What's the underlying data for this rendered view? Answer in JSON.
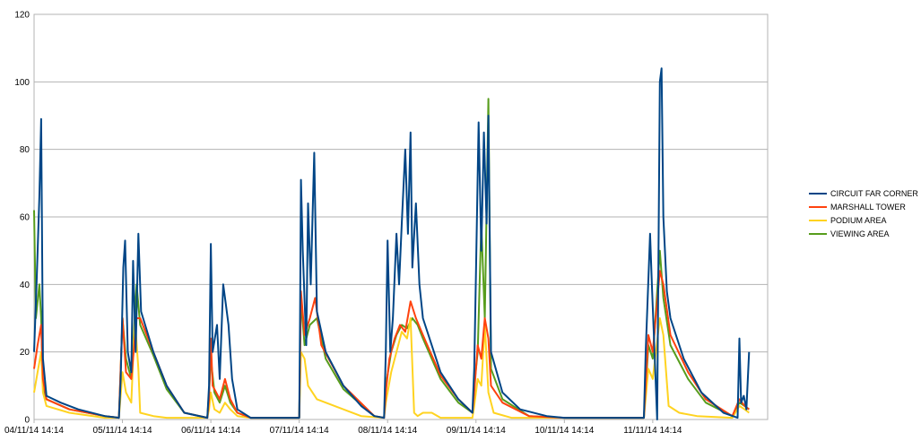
{
  "chart_data": {
    "type": "line",
    "title": "",
    "xlabel": "",
    "ylabel": "",
    "ylim": [
      0,
      120
    ],
    "yticks": [
      0,
      20,
      40,
      60,
      80,
      100,
      120
    ],
    "xlim": [
      0,
      8.3
    ],
    "x_tick_labels": [
      "04/11/14 14:14",
      "05/11/14 14:14",
      "06/11/14 14:14",
      "07/11/14 14:14",
      "08/11/14 14:14",
      "09/11/14 14:14",
      "10/11/14 14:14",
      "11/11/14 14:14"
    ],
    "x_tick_positions": [
      0,
      1,
      2,
      3,
      4,
      5,
      6,
      7
    ],
    "grid": true,
    "legend_position": "right",
    "series": [
      {
        "name": "CIRCUIT FAR CORNER",
        "color": "#004586",
        "points": [
          [
            0.0,
            20
          ],
          [
            0.03,
            42
          ],
          [
            0.06,
            66
          ],
          [
            0.08,
            89
          ],
          [
            0.1,
            18
          ],
          [
            0.14,
            7
          ],
          [
            0.3,
            5
          ],
          [
            0.5,
            3
          ],
          [
            0.8,
            1
          ],
          [
            0.96,
            0.5
          ],
          [
            0.98,
            12
          ],
          [
            1.01,
            45
          ],
          [
            1.03,
            53
          ],
          [
            1.06,
            20
          ],
          [
            1.1,
            14
          ],
          [
            1.12,
            47
          ],
          [
            1.15,
            20
          ],
          [
            1.18,
            55
          ],
          [
            1.21,
            32
          ],
          [
            1.35,
            20
          ],
          [
            1.5,
            10
          ],
          [
            1.7,
            2
          ],
          [
            1.96,
            0.5
          ],
          [
            1.98,
            10
          ],
          [
            2.0,
            52
          ],
          [
            2.02,
            20
          ],
          [
            2.07,
            28
          ],
          [
            2.1,
            12
          ],
          [
            2.14,
            40
          ],
          [
            2.17,
            34
          ],
          [
            2.2,
            28
          ],
          [
            2.24,
            12
          ],
          [
            2.3,
            3
          ],
          [
            2.45,
            0.5
          ],
          [
            3.0,
            0.5
          ],
          [
            3.01,
            30
          ],
          [
            3.02,
            71
          ],
          [
            3.04,
            50
          ],
          [
            3.08,
            22
          ],
          [
            3.1,
            64
          ],
          [
            3.13,
            40
          ],
          [
            3.17,
            79
          ],
          [
            3.2,
            32
          ],
          [
            3.3,
            20
          ],
          [
            3.5,
            10
          ],
          [
            3.7,
            4
          ],
          [
            3.85,
            1
          ],
          [
            3.96,
            0.5
          ],
          [
            3.98,
            20
          ],
          [
            4.0,
            53
          ],
          [
            4.03,
            20
          ],
          [
            4.06,
            30
          ],
          [
            4.1,
            55
          ],
          [
            4.13,
            40
          ],
          [
            4.16,
            58
          ],
          [
            4.2,
            80
          ],
          [
            4.23,
            55
          ],
          [
            4.26,
            85
          ],
          [
            4.28,
            45
          ],
          [
            4.32,
            64
          ],
          [
            4.36,
            40
          ],
          [
            4.4,
            30
          ],
          [
            4.6,
            14
          ],
          [
            4.8,
            6
          ],
          [
            4.96,
            2
          ],
          [
            4.98,
            15
          ],
          [
            5.0,
            44
          ],
          [
            5.03,
            88
          ],
          [
            5.06,
            50
          ],
          [
            5.09,
            85
          ],
          [
            5.12,
            58
          ],
          [
            5.14,
            90
          ],
          [
            5.17,
            20
          ],
          [
            5.3,
            8
          ],
          [
            5.5,
            3
          ],
          [
            5.8,
            1
          ],
          [
            6.0,
            0.5
          ],
          [
            6.9,
            0.5
          ],
          [
            6.92,
            20
          ],
          [
            6.97,
            55
          ],
          [
            6.99,
            40
          ],
          [
            7.05,
            0
          ],
          [
            7.08,
            100
          ],
          [
            7.1,
            104
          ],
          [
            7.12,
            60
          ],
          [
            7.16,
            38
          ],
          [
            7.2,
            30
          ],
          [
            7.35,
            18
          ],
          [
            7.55,
            8
          ],
          [
            7.8,
            2
          ],
          [
            7.96,
            0.5
          ],
          [
            7.98,
            24
          ],
          [
            8.0,
            5
          ],
          [
            8.03,
            7
          ],
          [
            8.06,
            3
          ],
          [
            8.09,
            20
          ]
        ]
      },
      {
        "name": "MARSHALL TOWER",
        "color": "#ff420e",
        "points": [
          [
            0.0,
            15
          ],
          [
            0.04,
            22
          ],
          [
            0.08,
            28
          ],
          [
            0.1,
            12
          ],
          [
            0.14,
            6
          ],
          [
            0.4,
            3
          ],
          [
            0.8,
            1
          ],
          [
            0.96,
            0.5
          ],
          [
            1.0,
            30
          ],
          [
            1.04,
            14
          ],
          [
            1.1,
            12
          ],
          [
            1.16,
            30
          ],
          [
            1.2,
            30
          ],
          [
            1.35,
            20
          ],
          [
            1.5,
            10
          ],
          [
            1.7,
            2
          ],
          [
            1.96,
            0.5
          ],
          [
            1.98,
            6
          ],
          [
            2.0,
            24
          ],
          [
            2.02,
            10
          ],
          [
            2.1,
            6
          ],
          [
            2.16,
            12
          ],
          [
            2.22,
            6
          ],
          [
            2.3,
            2
          ],
          [
            2.45,
            0.5
          ],
          [
            3.0,
            0.5
          ],
          [
            3.02,
            38
          ],
          [
            3.06,
            25
          ],
          [
            3.12,
            30
          ],
          [
            3.18,
            36
          ],
          [
            3.25,
            22
          ],
          [
            3.5,
            10
          ],
          [
            3.85,
            1
          ],
          [
            3.96,
            0.5
          ],
          [
            3.98,
            8
          ],
          [
            4.02,
            18
          ],
          [
            4.08,
            24
          ],
          [
            4.14,
            28
          ],
          [
            4.2,
            26
          ],
          [
            4.26,
            35
          ],
          [
            4.32,
            30
          ],
          [
            4.4,
            25
          ],
          [
            4.6,
            13
          ],
          [
            4.8,
            6
          ],
          [
            4.96,
            2
          ],
          [
            4.98,
            8
          ],
          [
            5.02,
            22
          ],
          [
            5.06,
            18
          ],
          [
            5.1,
            30
          ],
          [
            5.14,
            24
          ],
          [
            5.17,
            10
          ],
          [
            5.3,
            5
          ],
          [
            5.6,
            1
          ],
          [
            6.0,
            0.5
          ],
          [
            6.9,
            0.5
          ],
          [
            6.95,
            25
          ],
          [
            7.0,
            20
          ],
          [
            7.08,
            44
          ],
          [
            7.12,
            40
          ],
          [
            7.2,
            25
          ],
          [
            7.4,
            14
          ],
          [
            7.6,
            6
          ],
          [
            7.9,
            1
          ],
          [
            7.98,
            6
          ],
          [
            8.04,
            4
          ],
          [
            8.09,
            3
          ]
        ]
      },
      {
        "name": "PODIUM AREA",
        "color": "#ffd320",
        "points": [
          [
            0.0,
            8
          ],
          [
            0.04,
            14
          ],
          [
            0.08,
            20
          ],
          [
            0.1,
            8
          ],
          [
            0.14,
            4
          ],
          [
            0.4,
            2
          ],
          [
            0.8,
            0.5
          ],
          [
            0.96,
            0.5
          ],
          [
            1.0,
            14
          ],
          [
            1.04,
            8
          ],
          [
            1.1,
            5
          ],
          [
            1.14,
            30
          ],
          [
            1.18,
            15
          ],
          [
            1.2,
            2
          ],
          [
            1.35,
            1
          ],
          [
            1.5,
            0.5
          ],
          [
            1.96,
            0.5
          ],
          [
            1.98,
            3
          ],
          [
            2.0,
            8
          ],
          [
            2.04,
            3
          ],
          [
            2.1,
            2
          ],
          [
            2.16,
            5
          ],
          [
            2.22,
            3
          ],
          [
            2.3,
            1
          ],
          [
            2.45,
            0.5
          ],
          [
            3.0,
            0.5
          ],
          [
            3.02,
            20
          ],
          [
            3.06,
            18
          ],
          [
            3.1,
            10
          ],
          [
            3.2,
            6
          ],
          [
            3.4,
            4
          ],
          [
            3.7,
            1
          ],
          [
            3.96,
            0.5
          ],
          [
            3.98,
            5
          ],
          [
            4.04,
            14
          ],
          [
            4.1,
            20
          ],
          [
            4.16,
            26
          ],
          [
            4.22,
            24
          ],
          [
            4.26,
            30
          ],
          [
            4.3,
            2
          ],
          [
            4.34,
            1
          ],
          [
            4.4,
            2
          ],
          [
            4.5,
            2
          ],
          [
            4.6,
            0.5
          ],
          [
            4.96,
            0.5
          ],
          [
            4.98,
            4
          ],
          [
            5.02,
            12
          ],
          [
            5.06,
            10
          ],
          [
            5.1,
            28
          ],
          [
            5.14,
            8
          ],
          [
            5.2,
            2
          ],
          [
            5.4,
            0.5
          ],
          [
            6.0,
            0.5
          ],
          [
            6.9,
            0.5
          ],
          [
            6.95,
            15
          ],
          [
            7.0,
            12
          ],
          [
            7.08,
            30
          ],
          [
            7.12,
            25
          ],
          [
            7.18,
            4
          ],
          [
            7.3,
            2
          ],
          [
            7.5,
            1
          ],
          [
            7.9,
            0.5
          ],
          [
            7.98,
            4
          ],
          [
            8.04,
            3
          ],
          [
            8.09,
            2
          ]
        ]
      },
      {
        "name": "VIEWING AREA",
        "color": "#579d1c",
        "points": [
          [
            0.0,
            62
          ],
          [
            0.02,
            30
          ],
          [
            0.06,
            40
          ],
          [
            0.08,
            30
          ],
          [
            0.1,
            10
          ],
          [
            0.14,
            6
          ],
          [
            0.4,
            3
          ],
          [
            0.8,
            1
          ],
          [
            0.96,
            0.5
          ],
          [
            1.0,
            30
          ],
          [
            1.04,
            18
          ],
          [
            1.1,
            12
          ],
          [
            1.16,
            40
          ],
          [
            1.2,
            28
          ],
          [
            1.35,
            19
          ],
          [
            1.5,
            9
          ],
          [
            1.7,
            2
          ],
          [
            1.96,
            0.5
          ],
          [
            1.98,
            8
          ],
          [
            2.0,
            18
          ],
          [
            2.04,
            8
          ],
          [
            2.1,
            5
          ],
          [
            2.16,
            10
          ],
          [
            2.22,
            5
          ],
          [
            2.3,
            2
          ],
          [
            2.45,
            0.5
          ],
          [
            3.0,
            0.5
          ],
          [
            3.02,
            36
          ],
          [
            3.06,
            22
          ],
          [
            3.12,
            28
          ],
          [
            3.2,
            30
          ],
          [
            3.3,
            18
          ],
          [
            3.5,
            9
          ],
          [
            3.85,
            1
          ],
          [
            3.96,
            0.5
          ],
          [
            3.98,
            10
          ],
          [
            4.04,
            20
          ],
          [
            4.1,
            25
          ],
          [
            4.16,
            28
          ],
          [
            4.22,
            27
          ],
          [
            4.28,
            30
          ],
          [
            4.34,
            28
          ],
          [
            4.4,
            24
          ],
          [
            4.6,
            12
          ],
          [
            4.8,
            5
          ],
          [
            4.96,
            2
          ],
          [
            4.98,
            10
          ],
          [
            5.02,
            20
          ],
          [
            5.06,
            58
          ],
          [
            5.1,
            30
          ],
          [
            5.14,
            95
          ],
          [
            5.17,
            15
          ],
          [
            5.3,
            6
          ],
          [
            5.6,
            1
          ],
          [
            6.0,
            0.5
          ],
          [
            6.9,
            0.5
          ],
          [
            6.95,
            22
          ],
          [
            7.0,
            18
          ],
          [
            7.08,
            50
          ],
          [
            7.12,
            36
          ],
          [
            7.2,
            22
          ],
          [
            7.4,
            12
          ],
          [
            7.6,
            5
          ],
          [
            7.9,
            1
          ],
          [
            7.98,
            5
          ],
          [
            8.04,
            4
          ],
          [
            8.09,
            3
          ]
        ]
      }
    ]
  }
}
